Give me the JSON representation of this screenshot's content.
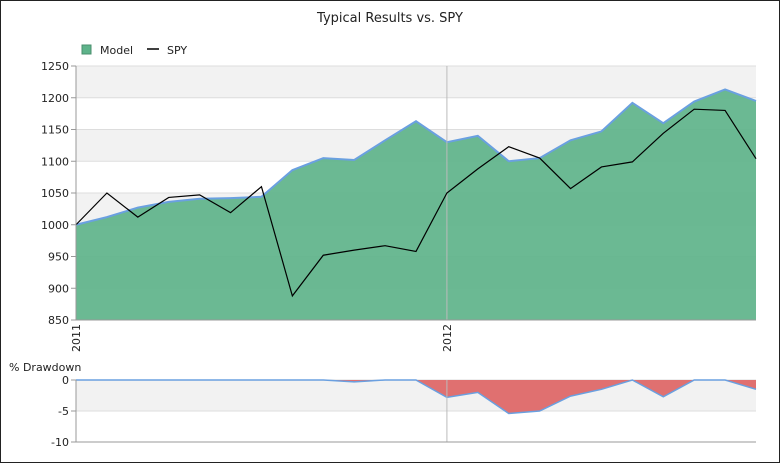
{
  "chart_data": {
    "type": "area",
    "title": "Typical Results vs. SPY",
    "legend": {
      "position": "top-left",
      "items": [
        {
          "label": "Model",
          "symbol": "square",
          "color": "#5eb38a"
        },
        {
          "label": "SPY",
          "symbol": "line",
          "color": "#000000"
        }
      ]
    },
    "x_tick_labels": [
      {
        "label": "2011",
        "index": 0
      },
      {
        "label": "2012",
        "index": 12
      }
    ],
    "main": {
      "ylim": [
        850,
        1250
      ],
      "yticks": [
        850,
        900,
        950,
        1000,
        1050,
        1100,
        1150,
        1200,
        1250
      ],
      "grid": true,
      "series": [
        {
          "name": "Model",
          "type": "area",
          "color": "#5eb38a",
          "edge_color": "#6aa0e0",
          "values": [
            1000,
            1012,
            1027,
            1036,
            1041,
            1042,
            1044,
            1086,
            1105,
            1102,
            1133,
            1163,
            1130,
            1140,
            1100,
            1105,
            1133,
            1147,
            1192,
            1160,
            1194,
            1213,
            1195
          ]
        },
        {
          "name": "SPY",
          "type": "line",
          "color": "#000000",
          "values": [
            1000,
            1050,
            1012,
            1043,
            1047,
            1019,
            1060,
            888,
            952,
            960,
            967,
            958,
            1050,
            1088,
            1123,
            1105,
            1057,
            1091,
            1099,
            1144,
            1182,
            1180,
            1104
          ]
        }
      ]
    },
    "drawdown": {
      "title": "% Drawdown",
      "ylim": [
        -10,
        0
      ],
      "yticks": [
        0,
        -5,
        -10
      ],
      "color": "#e07070",
      "edge_color": "#6aa0e0",
      "values": [
        0,
        0,
        0,
        0,
        0,
        0,
        0,
        0,
        0,
        -0.3,
        0,
        0,
        -2.8,
        -2.0,
        -5.4,
        -5.0,
        -2.6,
        -1.5,
        0,
        -2.7,
        0,
        0,
        -1.5
      ]
    }
  }
}
